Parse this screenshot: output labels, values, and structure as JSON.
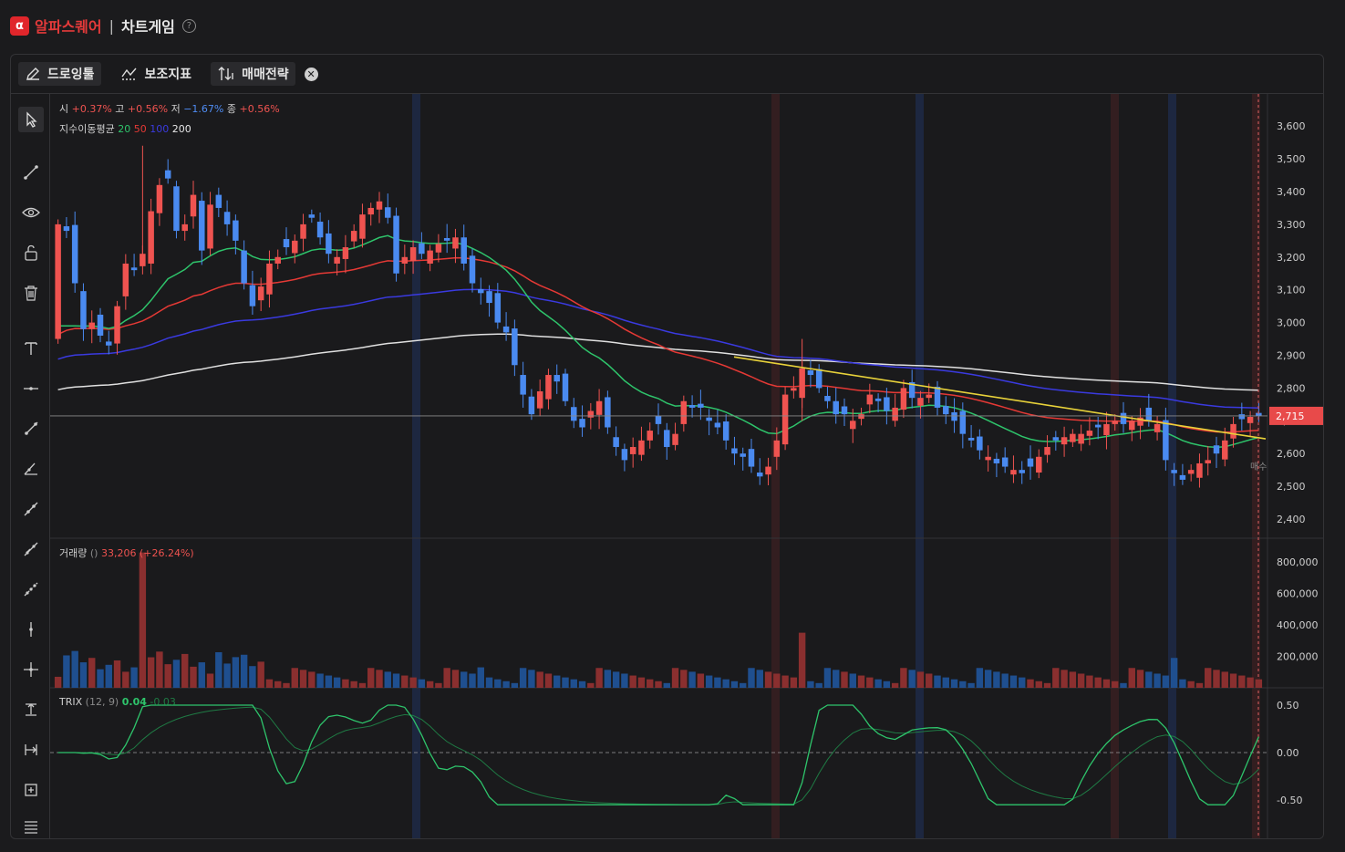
{
  "header": {
    "logo_glyph": "α",
    "brand": "알파스퀘어",
    "separator": "|",
    "title": "차트게임",
    "help_glyph": "?"
  },
  "toolbar": {
    "drawing_tools_label": "드로잉툴",
    "indicators_label": "보조지표",
    "strategy_label": "매매전략",
    "close_glyph": "✕"
  },
  "legend": {
    "ohlc": {
      "open_label": "시",
      "open": "+0.37%",
      "high_label": "고",
      "high": "+0.56%",
      "low_label": "저",
      "low": "−1.67%",
      "close_label": "종",
      "close": "+0.56%"
    },
    "ema": {
      "label": "지수이동평균",
      "p1": "20",
      "p2": "50",
      "p3": "100",
      "p4": "200"
    },
    "volume": {
      "label": "거래량",
      "params": "()",
      "value": "33,206 (+26.24%)"
    },
    "trix": {
      "label": "TRIX",
      "params": "(12, 9)",
      "value": "0.04",
      "signal": "-0.03"
    }
  },
  "price_axis": {
    "ticks": [
      "3,600",
      "3,500",
      "3,400",
      "3,300",
      "3,200",
      "3,100",
      "3,000",
      "2,900",
      "2,800",
      "2,700",
      "2,600",
      "2,500",
      "2,400"
    ],
    "current": "2,715",
    "tag_text": "매수"
  },
  "volume_axis": {
    "ticks": [
      "800,000",
      "600,000",
      "400,000",
      "200,000"
    ]
  },
  "trix_axis": {
    "ticks": [
      "0.50",
      "0.00",
      "-0.50"
    ]
  },
  "colors": {
    "up": "#ef5350",
    "down": "#4a8af0",
    "ema20": "#2ec46b",
    "ema50": "#e53935",
    "ema100": "#3a3ae0",
    "ema200": "#e0e0e0",
    "trendline": "#e8d23a",
    "current_price": "#e84a4a"
  },
  "chart_data": {
    "type": "candlestick",
    "yrange_price": [
      2400,
      3600
    ],
    "yrange_volume": [
      0,
      800000
    ],
    "yrange_trix": [
      -0.6,
      0.5
    ],
    "candle_closes": [
      3300,
      3280,
      3120,
      2980,
      3000,
      2960,
      2930,
      3050,
      3180,
      3160,
      3210,
      3340,
      3420,
      3440,
      3280,
      3300,
      3390,
      3220,
      3360,
      3350,
      3300,
      3250,
      3120,
      3050,
      3110,
      3180,
      3200,
      3230,
      3250,
      3300,
      3320,
      3260,
      3210,
      3200,
      3230,
      3280,
      3330,
      3350,
      3370,
      3320,
      3150,
      3200,
      3230,
      3210,
      3220,
      3240,
      3250,
      3260,
      3180,
      3120,
      3090,
      3060,
      3000,
      2970,
      2870,
      2780,
      2720,
      2790,
      2840,
      2820,
      2760,
      2700,
      2680,
      2730,
      2760,
      2680,
      2620,
      2580,
      2620,
      2640,
      2670,
      2690,
      2620,
      2660,
      2760,
      2740,
      2740,
      2700,
      2680,
      2640,
      2600,
      2590,
      2560,
      2530,
      2560,
      2640,
      2780,
      2800,
      2860,
      2840,
      2800,
      2760,
      2720,
      2720,
      2700,
      2720,
      2780,
      2760,
      2730,
      2740,
      2800,
      2770,
      2770,
      2780,
      2740,
      2720,
      2700,
      2660,
      2640,
      2610,
      2590,
      2570,
      2560,
      2550,
      2540,
      2560,
      2590,
      2620,
      2640,
      2650,
      2660,
      2660,
      2670,
      2680,
      2690,
      2700,
      2690,
      2700,
      2710,
      2700,
      2690,
      2580,
      2540,
      2520,
      2550,
      2570,
      2580,
      2600,
      2640,
      2690,
      2705,
      2712,
      2715
    ],
    "volume_note": "per-candle volume bars; spike ~860,000 near start, ~350,000 mid",
    "ema_periods": [
      20,
      50,
      100,
      200
    ],
    "trix": {
      "params": [
        12,
        9
      ],
      "value": 0.04,
      "signal": -0.03
    }
  }
}
